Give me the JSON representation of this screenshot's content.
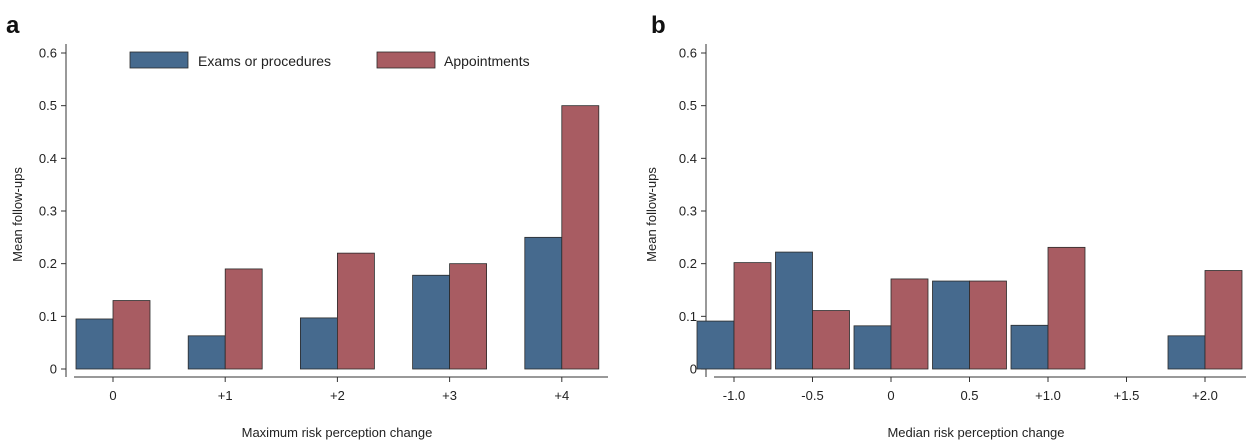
{
  "colors": {
    "exams": "#466a8e",
    "appointments": "#a85c62"
  },
  "legend": [
    "Exams or procedures",
    "Appointments"
  ],
  "chart_data": [
    {
      "panel": "a",
      "type": "bar",
      "categories": [
        "0",
        "+1",
        "+2",
        "+3",
        "+4"
      ],
      "series": [
        {
          "name": "Exams or procedures",
          "values": [
            0.095,
            0.063,
            0.097,
            0.178,
            0.25
          ]
        },
        {
          "name": "Appointments",
          "values": [
            0.13,
            0.19,
            0.22,
            0.2,
            0.5
          ]
        }
      ],
      "xlabel": "Maximum risk perception change",
      "ylabel": "Mean follow-ups",
      "yticks": [
        "0",
        "0.1",
        "0.2",
        "0.3",
        "0.4",
        "0.5",
        "0.6"
      ],
      "ylim": [
        0,
        0.62
      ],
      "legend_position": "top"
    },
    {
      "panel": "b",
      "type": "bar",
      "categories": [
        "-1.0",
        "-0.5",
        "0",
        "0.5",
        "+1.0",
        "+1.5",
        "+2.0"
      ],
      "series": [
        {
          "name": "Exams or procedures",
          "values": [
            0.091,
            0.222,
            0.082,
            0.167,
            0.083,
            0,
            0.063
          ]
        },
        {
          "name": "Appointments",
          "values": [
            0.202,
            0.111,
            0.171,
            0.167,
            0.231,
            0,
            0.187
          ]
        }
      ],
      "xlabel": "Median risk perception change",
      "ylabel": "Mean follow-ups",
      "yticks": [
        "0",
        "0.1",
        "0.2",
        "0.3",
        "0.4",
        "0.5",
        "0.6"
      ],
      "ylim": [
        0,
        0.62
      ]
    }
  ]
}
